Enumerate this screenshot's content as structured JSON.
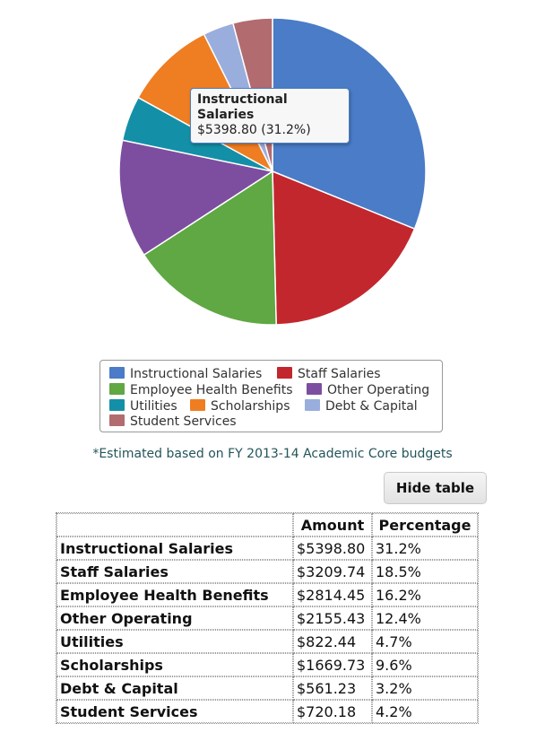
{
  "chart_data": {
    "type": "pie",
    "categories": [
      "Instructional Salaries",
      "Staff Salaries",
      "Employee Health Benefits",
      "Other Operating",
      "Utilities",
      "Scholarships",
      "Debt & Capital",
      "Student Services"
    ],
    "values": [
      5398.8,
      3209.74,
      2814.45,
      2155.43,
      822.44,
      1669.73,
      561.23,
      720.18
    ],
    "percentages": [
      "31.2%",
      "18.5%",
      "16.2%",
      "12.4%",
      "4.7%",
      "9.6%",
      "3.2%",
      "4.2%"
    ],
    "colors": [
      "#4a7cc7",
      "#c2272d",
      "#5fa843",
      "#7d4e9f",
      "#1390a7",
      "#ef7d22",
      "#9aaedd",
      "#b26b6f"
    ],
    "tooltip": {
      "title": "Instructional Salaries",
      "value": "$5398.80 (31.2%)"
    },
    "legend": {
      "items": [
        "Instructional Salaries",
        "Staff Salaries",
        "Employee Health Benefits",
        "Other Operating",
        "Utilities",
        "Scholarships",
        "Debt & Capital",
        "Student Services"
      ]
    },
    "footnote": "*Estimated based on FY 2013-14 Academic Core budgets"
  },
  "controls": {
    "hide_table_label": "Hide table"
  },
  "table": {
    "headers": [
      "",
      "Amount",
      "Percentage"
    ],
    "rows": [
      {
        "label": "Instructional Salaries",
        "amount": "$5398.80",
        "percentage": "31.2%"
      },
      {
        "label": "Staff Salaries",
        "amount": "$3209.74",
        "percentage": "18.5%"
      },
      {
        "label": "Employee Health Benefits",
        "amount": "$2814.45",
        "percentage": "16.2%"
      },
      {
        "label": "Other Operating",
        "amount": "$2155.43",
        "percentage": "12.4%"
      },
      {
        "label": "Utilities",
        "amount": "$822.44",
        "percentage": "4.7%"
      },
      {
        "label": "Scholarships",
        "amount": "$1669.73",
        "percentage": "9.6%"
      },
      {
        "label": "Debt & Capital",
        "amount": "$561.23",
        "percentage": "3.2%"
      },
      {
        "label": "Student Services",
        "amount": "$720.18",
        "percentage": "4.2%"
      }
    ]
  }
}
